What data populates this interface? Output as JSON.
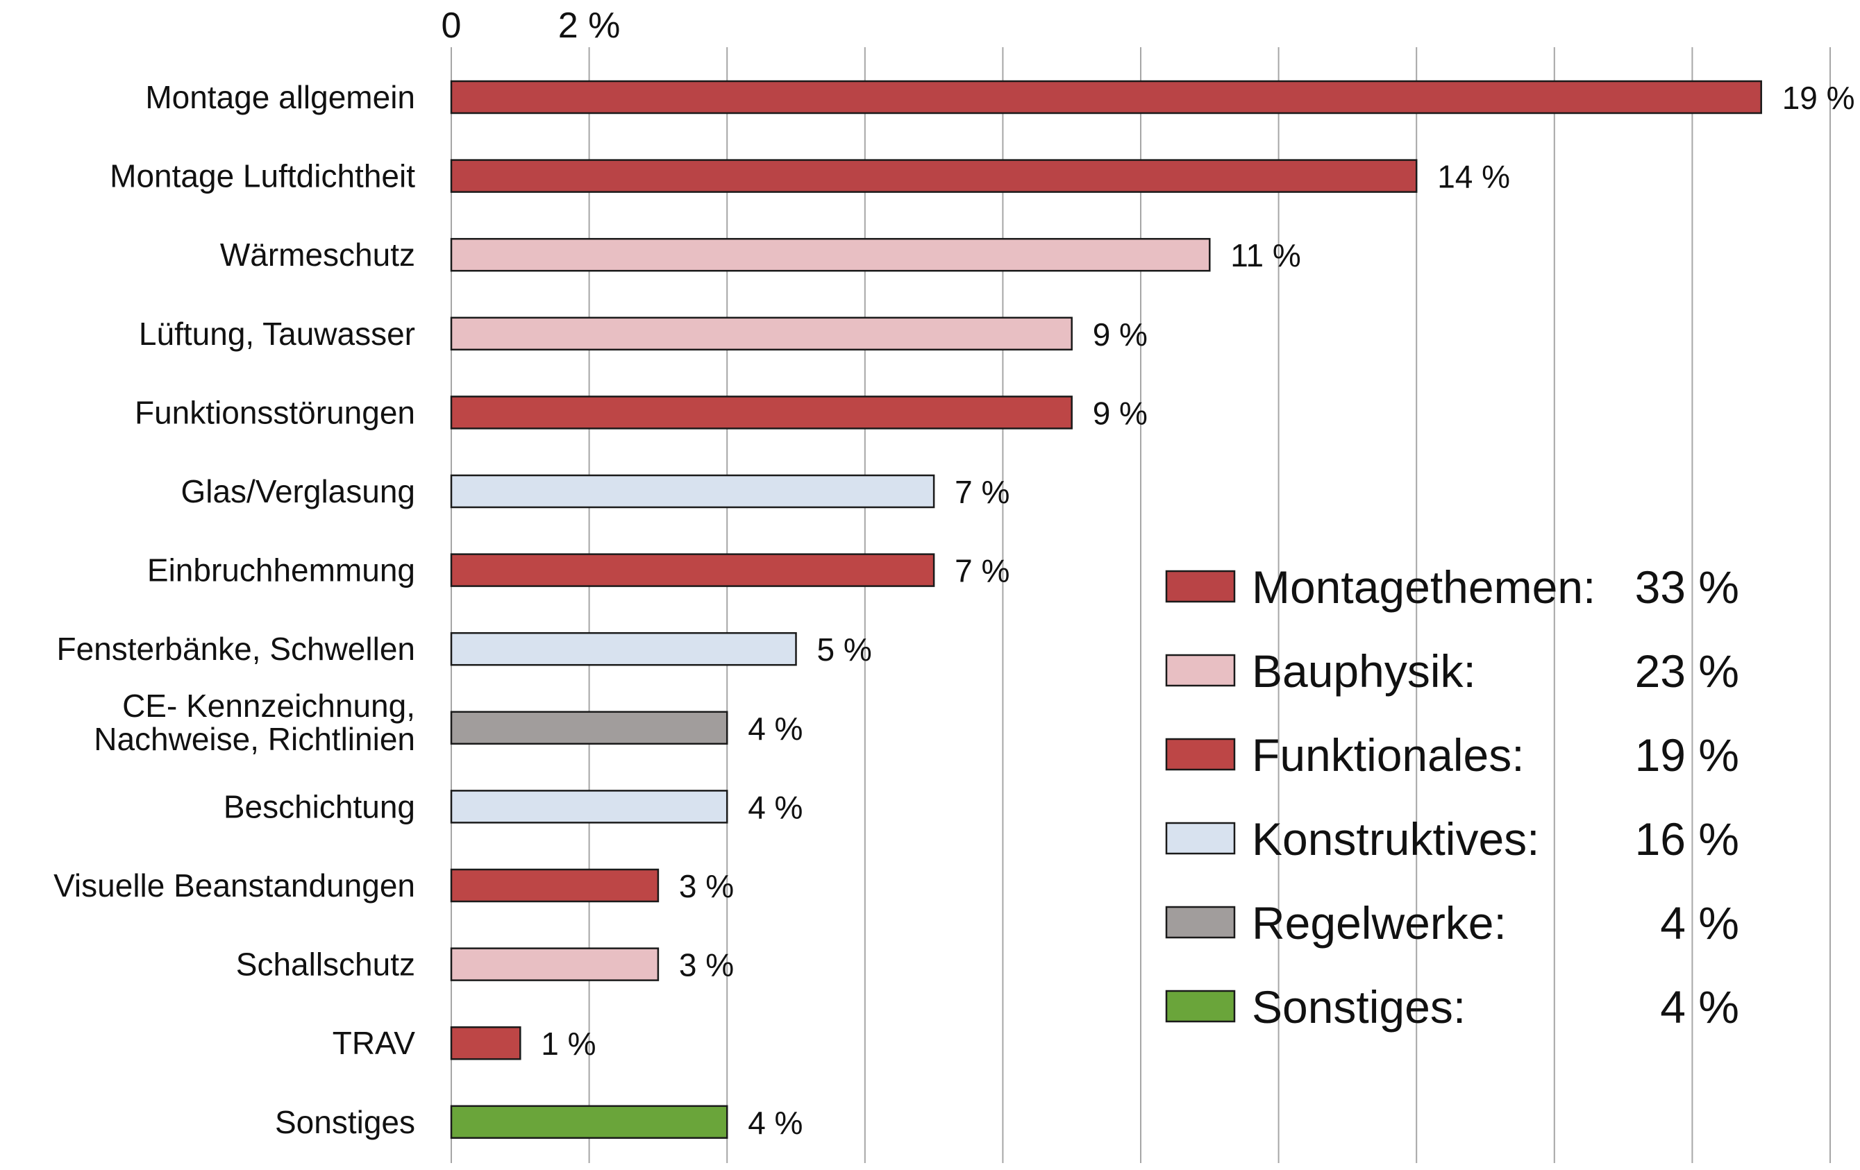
{
  "chart_data": {
    "type": "bar",
    "orientation": "horizontal",
    "x_tick_labels": [
      "0",
      "2 %"
    ],
    "xlim": [
      0,
      20
    ],
    "grid": "vertical lines every 2 %",
    "colors": {
      "Montagethemen": "#b94446",
      "Bauphysik": "#e8bfc3",
      "Funktionales": "#bd4646",
      "Konstruktives": "#d8e2ef",
      "Regelwerke": "#a19d9c",
      "Sonstiges": "#6aa53a"
    },
    "bars": [
      {
        "label_lines": [
          "Montage allgemein"
        ],
        "value": 19,
        "value_label": "19 %",
        "group": "Montagethemen"
      },
      {
        "label_lines": [
          "Montage Luftdichtheit"
        ],
        "value": 14,
        "value_label": "14 %",
        "group": "Montagethemen"
      },
      {
        "label_lines": [
          "Wärmeschutz"
        ],
        "value": 11,
        "value_label": "11 %",
        "group": "Bauphysik"
      },
      {
        "label_lines": [
          "Lüftung, Tauwasser"
        ],
        "value": 9,
        "value_label": "9 %",
        "group": "Bauphysik"
      },
      {
        "label_lines": [
          "Funktionsstörungen"
        ],
        "value": 9,
        "value_label": "9 %",
        "group": "Funktionales"
      },
      {
        "label_lines": [
          "Glas/Verglasung"
        ],
        "value": 7,
        "value_label": "7 %",
        "group": "Konstruktives"
      },
      {
        "label_lines": [
          "Einbruchhemmung"
        ],
        "value": 7,
        "value_label": "7 %",
        "group": "Funktionales"
      },
      {
        "label_lines": [
          "Fensterbänke, Schwellen"
        ],
        "value": 5,
        "value_label": "5 %",
        "group": "Konstruktives"
      },
      {
        "label_lines": [
          "CE- Kennzeichnung,",
          "Nachweise, Richtlinien"
        ],
        "value": 4,
        "value_label": "4 %",
        "group": "Regelwerke"
      },
      {
        "label_lines": [
          "Beschichtung"
        ],
        "value": 4,
        "value_label": "4 %",
        "group": "Konstruktives"
      },
      {
        "label_lines": [
          "Visuelle Beanstandungen"
        ],
        "value": 3,
        "value_label": "3 %",
        "group": "Funktionales"
      },
      {
        "label_lines": [
          "Schallschutz"
        ],
        "value": 3,
        "value_label": "3 %",
        "group": "Bauphysik"
      },
      {
        "label_lines": [
          "TRAV"
        ],
        "value": 1,
        "value_label": "1 %",
        "group": "Funktionales"
      },
      {
        "label_lines": [
          "Sonstiges"
        ],
        "value": 4,
        "value_label": "4 %",
        "group": "Sonstiges"
      }
    ],
    "legend": [
      {
        "name": "Montagethemen:",
        "group": "Montagethemen",
        "value": 33,
        "value_label": "33 %"
      },
      {
        "name": "Bauphysik:",
        "group": "Bauphysik",
        "value": 23,
        "value_label": "23 %"
      },
      {
        "name": "Funktionales:",
        "group": "Funktionales",
        "value": 19,
        "value_label": "19 %"
      },
      {
        "name": "Konstruktives:",
        "group": "Konstruktives",
        "value": 16,
        "value_label": "16 %"
      },
      {
        "name": "Regelwerke:",
        "group": "Regelwerke",
        "value": 4,
        "value_label": "4 %"
      },
      {
        "name": "Sonstiges:",
        "group": "Sonstiges",
        "value": 4,
        "value_label": "4 %"
      }
    ],
    "legend_placement": "bottom-right"
  }
}
